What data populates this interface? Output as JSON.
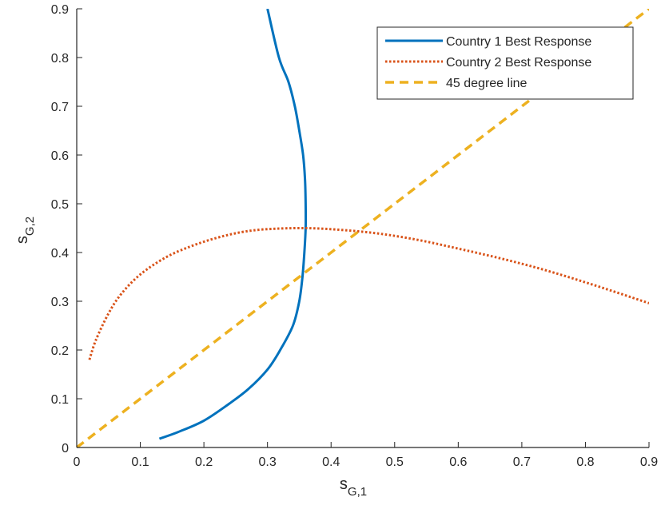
{
  "chart_data": {
    "type": "line",
    "title": "",
    "xlabel": {
      "main": "s",
      "sub": "G,1"
    },
    "ylabel": {
      "main": "s",
      "sub": "G,2"
    },
    "xlim": [
      0,
      0.9
    ],
    "ylim": [
      0,
      0.9
    ],
    "xticks": [
      "0",
      "0.1",
      "0.2",
      "0.3",
      "0.4",
      "0.5",
      "0.6",
      "0.7",
      "0.8",
      "0.9"
    ],
    "yticks": [
      "0",
      "0.1",
      "0.2",
      "0.3",
      "0.4",
      "0.5",
      "0.6",
      "0.7",
      "0.8",
      "0.9"
    ],
    "grid": false,
    "legend_position": "top-right",
    "series": [
      {
        "name": "Country 1 Best Response",
        "color": "#0072BD",
        "style": "solid",
        "x": [
          0.13,
          0.16,
          0.2,
          0.24,
          0.27,
          0.3,
          0.32,
          0.34,
          0.35,
          0.355,
          0.358,
          0.36,
          0.36,
          0.359,
          0.356,
          0.35,
          0.343,
          0.333,
          0.318,
          0.3
        ],
        "y": [
          0.018,
          0.032,
          0.055,
          0.09,
          0.12,
          0.16,
          0.2,
          0.25,
          0.3,
          0.35,
          0.4,
          0.45,
          0.5,
          0.55,
          0.6,
          0.65,
          0.7,
          0.75,
          0.8,
          0.9
        ]
      },
      {
        "name": "Country 2 Best Response",
        "color": "#D95319",
        "style": "dotted",
        "x": [
          0.02,
          0.03,
          0.05,
          0.07,
          0.1,
          0.14,
          0.18,
          0.22,
          0.26,
          0.3,
          0.36,
          0.42,
          0.48,
          0.54,
          0.6,
          0.66,
          0.72,
          0.78,
          0.84,
          0.9
        ],
        "y": [
          0.18,
          0.22,
          0.275,
          0.315,
          0.355,
          0.39,
          0.413,
          0.43,
          0.442,
          0.448,
          0.45,
          0.446,
          0.438,
          0.425,
          0.408,
          0.39,
          0.37,
          0.347,
          0.322,
          0.296
        ]
      },
      {
        "name": "45 degree line",
        "color": "#EDB120",
        "style": "dashed",
        "x": [
          0,
          0.9
        ],
        "y": [
          0,
          0.9
        ]
      }
    ]
  }
}
